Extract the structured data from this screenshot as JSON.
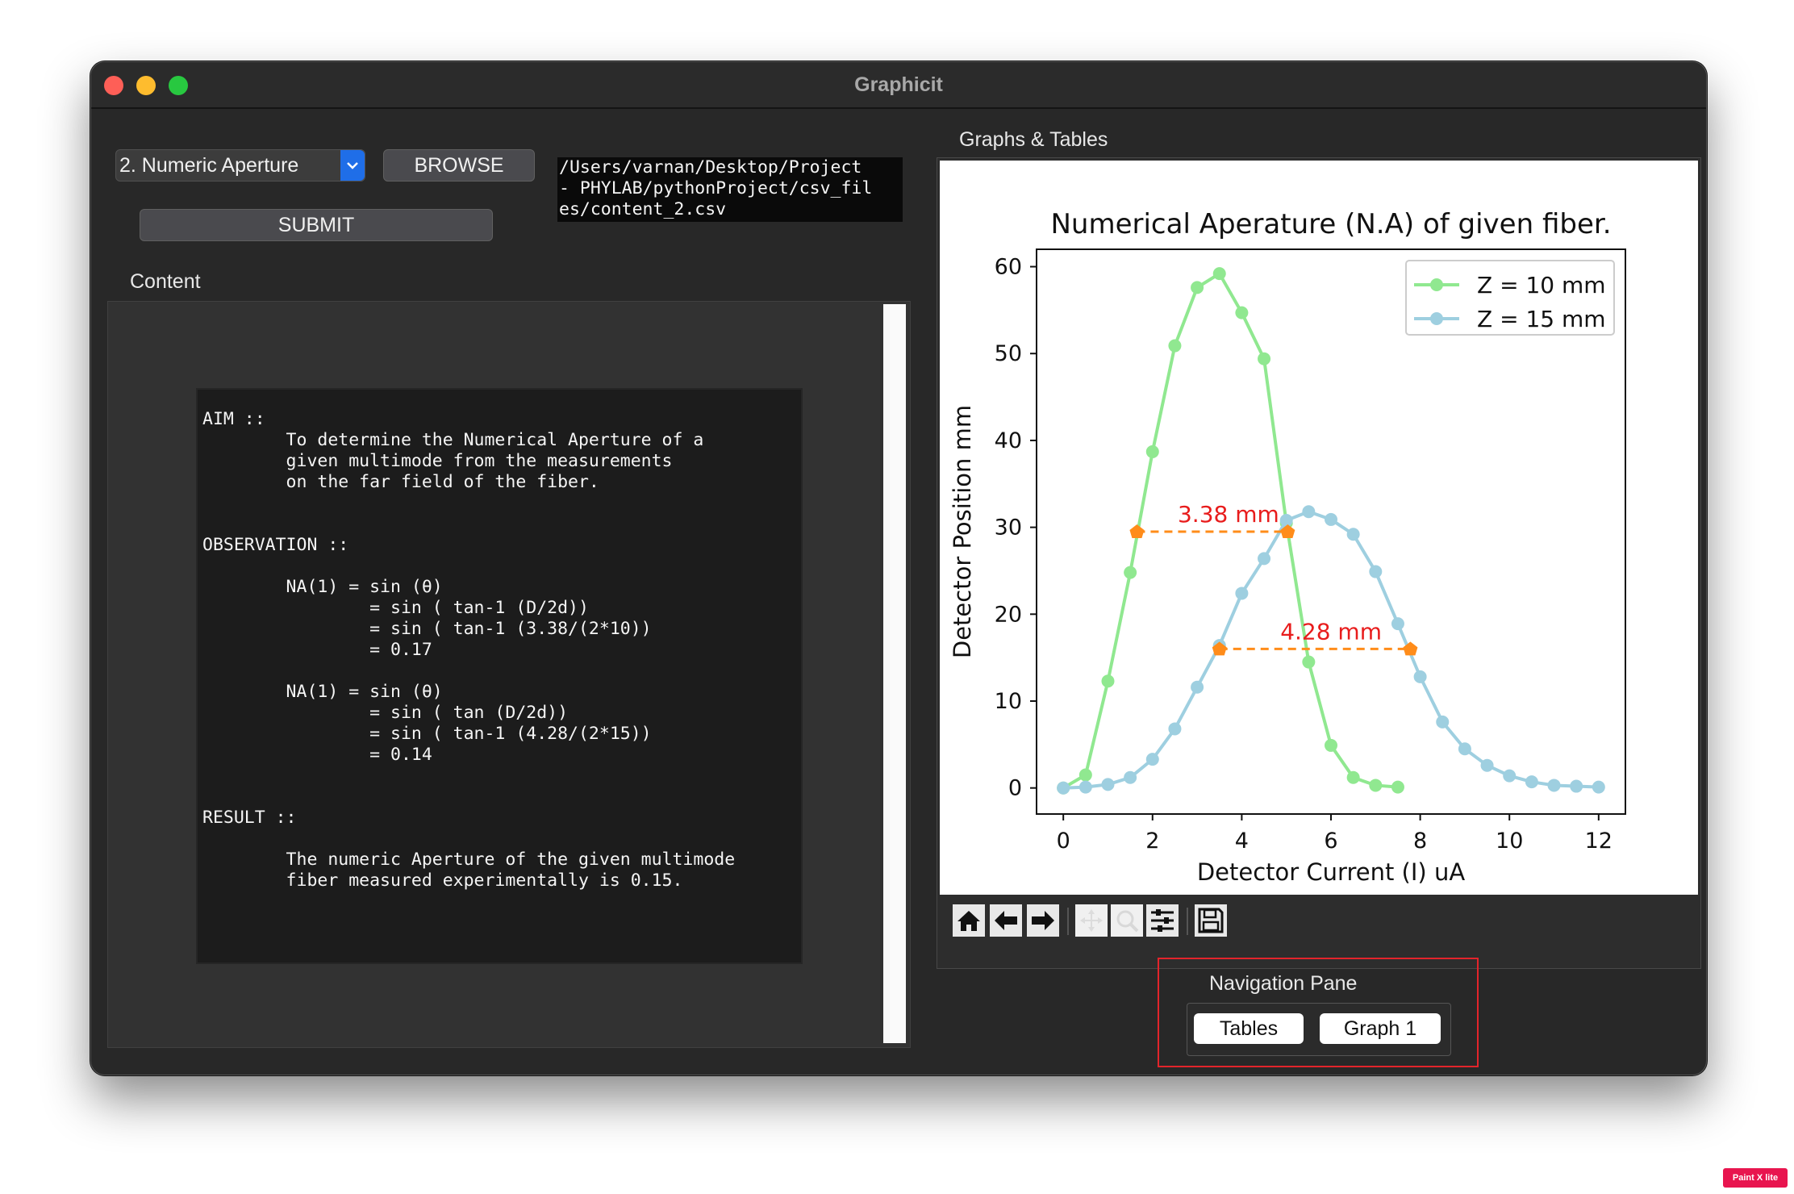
{
  "window": {
    "title": "Graphicit"
  },
  "controls": {
    "experiment_select": "2. Numeric Aperture",
    "browse_label": "BROWSE",
    "submit_label": "SUBMIT",
    "file_path": "/Users/varnan/Desktop/Project\n- PHYLAB/pythonProject/csv_fil\nes/content_2.csv"
  },
  "content": {
    "label": "Content",
    "text": "AIM ::\n        To determine the Numerical Aperture of a\n        given multimode from the measurements\n        on the far field of the fiber.\n\n\nOBSERVATION ::\n\n        NA(1) = sin (θ)\n                = sin ( tan-1 (D/2d))\n                = sin ( tan-1 (3.38/(2*10))\n                = 0.17\n\n        NA(1) = sin (θ)\n                = sin ( tan (D/2d))\n                = sin ( tan-1 (4.28/(2*15))\n                = 0.14\n\n\nRESULT ::\n\n        The numeric Aperture of the given multimode\n        fiber measured experimentally is 0.15."
  },
  "graphs": {
    "label": "Graphs & Tables"
  },
  "toolbar": {
    "icons": [
      "home-icon",
      "back-arrow-icon",
      "forward-arrow-icon",
      "pan-icon",
      "zoom-icon",
      "configure-subplots-icon",
      "save-icon"
    ]
  },
  "navigation": {
    "label": "Navigation Pane",
    "buttons": {
      "tables": "Tables",
      "graph1": "Graph 1"
    }
  },
  "badge": "Paint X lite",
  "chart_data": {
    "type": "line",
    "title": "Numerical Aperature (N.A) of given fiber.",
    "xlabel": "Detector Current (I) uA",
    "ylabel": "Detector Position mm",
    "xlim": [
      -0.6,
      12.6
    ],
    "ylim": [
      -3,
      62
    ],
    "xticks": [
      0,
      2,
      4,
      6,
      8,
      10,
      12
    ],
    "yticks": [
      0,
      10,
      20,
      30,
      40,
      50,
      60
    ],
    "legend_position": "top-right",
    "series": [
      {
        "name": "Z = 10 mm",
        "color": "#90e890",
        "points": [
          [
            0.0,
            0
          ],
          [
            0.5,
            1.5
          ],
          [
            1.0,
            12.3
          ],
          [
            1.5,
            24.8
          ],
          [
            2.0,
            38.7
          ],
          [
            2.5,
            50.9
          ],
          [
            3.0,
            57.6
          ],
          [
            3.5,
            59.2
          ],
          [
            4.0,
            54.7
          ],
          [
            4.5,
            49.4
          ],
          [
            5.0,
            30.5
          ],
          [
            5.5,
            14.5
          ],
          [
            6.0,
            4.9
          ],
          [
            6.5,
            1.2
          ],
          [
            7.0,
            0.3
          ],
          [
            7.5,
            0.1
          ]
        ]
      },
      {
        "name": "Z = 15 mm",
        "color": "#9ecfe0",
        "points": [
          [
            0.0,
            0
          ],
          [
            0.5,
            0.1
          ],
          [
            1.0,
            0.4
          ],
          [
            1.5,
            1.2
          ],
          [
            2.0,
            3.3
          ],
          [
            2.5,
            6.8
          ],
          [
            3.0,
            11.6
          ],
          [
            3.5,
            16.4
          ],
          [
            4.0,
            22.4
          ],
          [
            4.5,
            26.4
          ],
          [
            5.0,
            30.8
          ],
          [
            5.5,
            31.8
          ],
          [
            6.0,
            30.9
          ],
          [
            6.5,
            29.2
          ],
          [
            7.0,
            24.9
          ],
          [
            7.5,
            18.9
          ],
          [
            8.0,
            12.8
          ],
          [
            8.5,
            7.6
          ],
          [
            9.0,
            4.5
          ],
          [
            9.5,
            2.6
          ],
          [
            10.0,
            1.4
          ],
          [
            10.5,
            0.7
          ],
          [
            11.0,
            0.3
          ],
          [
            11.5,
            0.2
          ],
          [
            12.0,
            0.1
          ]
        ]
      }
    ],
    "annotations": [
      {
        "label": "3.38 mm",
        "x1": 1.65,
        "x2": 5.03,
        "y": 29.5
      },
      {
        "label": "4.28 mm",
        "x1": 3.5,
        "x2": 7.78,
        "y": 16.0
      }
    ],
    "annotation_color": "#ff8c1a",
    "annotation_text_color": "#e81c1c"
  }
}
